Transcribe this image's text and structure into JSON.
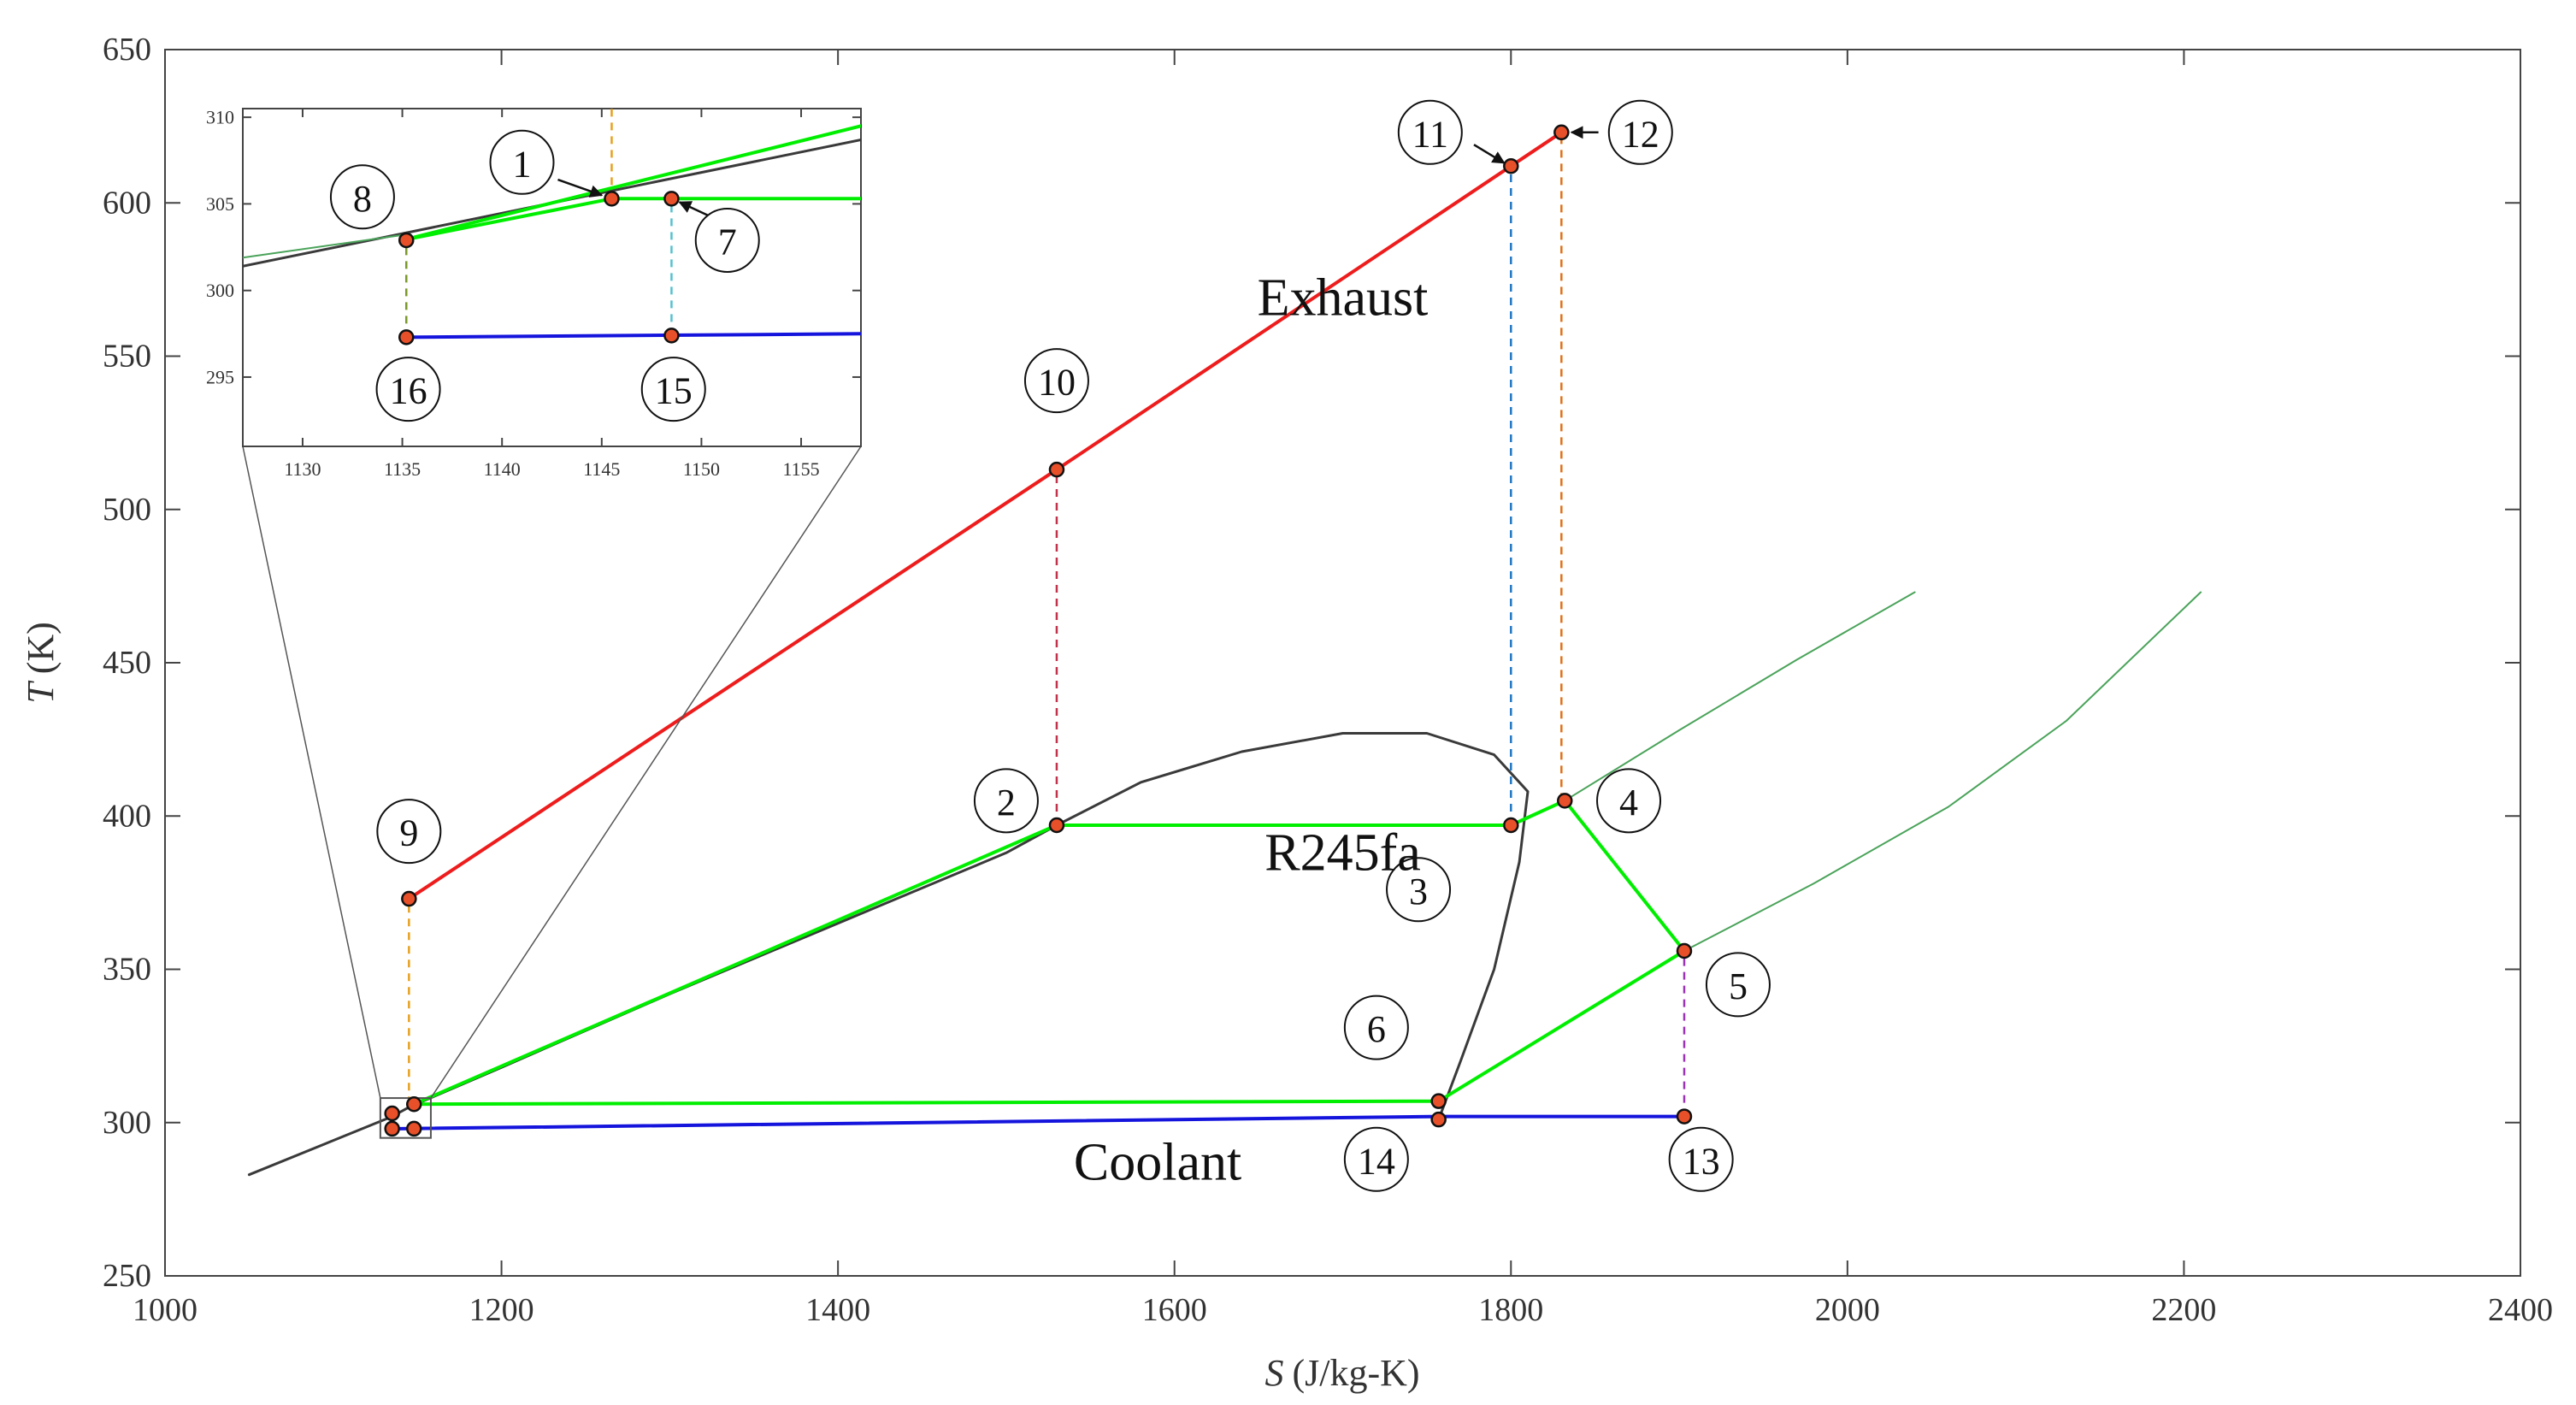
{
  "chart_data": {
    "type": "line",
    "title": "",
    "xlabel_var": "S",
    "xlabel_unit": "(J/kg-K)",
    "ylabel_var": "T",
    "ylabel_unit": "(K)",
    "xlim": [
      1000,
      2400
    ],
    "ylim": [
      250,
      650
    ],
    "x_ticks": [
      1000,
      1200,
      1400,
      1600,
      1800,
      2000,
      2200,
      2400
    ],
    "y_ticks": [
      250,
      300,
      350,
      400,
      450,
      500,
      550,
      600,
      650
    ],
    "annotations": [
      {
        "text": "Exhaust",
        "x": 1700,
        "y": 569
      },
      {
        "text": "R245fa",
        "x": 1700,
        "y": 388
      },
      {
        "text": "Coolant",
        "x": 1590,
        "y": 287
      }
    ],
    "series": [
      {
        "name": "Saturation dome",
        "color": "#3a3a3a",
        "width": 3,
        "points": [
          [
            1050,
            283
          ],
          [
            1135,
            302
          ],
          [
            1145,
            305
          ],
          [
            1200,
            318
          ],
          [
            1300,
            342
          ],
          [
            1400,
            365
          ],
          [
            1500,
            388
          ],
          [
            1530,
            397
          ],
          [
            1580,
            411
          ],
          [
            1640,
            421
          ],
          [
            1700,
            427
          ],
          [
            1750,
            427
          ],
          [
            1790,
            420
          ],
          [
            1810,
            408
          ],
          [
            1805,
            385
          ],
          [
            1790,
            350
          ],
          [
            1770,
            320
          ],
          [
            1757,
            301
          ]
        ]
      },
      {
        "name": "Superheated isobar (high)",
        "color": "#4aa35a",
        "width": 2,
        "points": [
          [
            1832,
            405
          ],
          [
            1900,
            428
          ],
          [
            1970,
            451
          ],
          [
            2040,
            473
          ]
        ]
      },
      {
        "name": "Superheated isobar (low)",
        "color": "#4aa35a",
        "width": 2,
        "points": [
          [
            1903,
            356
          ],
          [
            1980,
            378
          ],
          [
            2060,
            403
          ],
          [
            2130,
            431
          ],
          [
            2210,
            473
          ]
        ]
      },
      {
        "name": "Exhaust",
        "color": "#ee1c1c",
        "width": 4,
        "points": [
          [
            1145,
            373
          ],
          [
            1530,
            513
          ],
          [
            1800,
            612
          ],
          [
            1830,
            623
          ]
        ]
      },
      {
        "name": "R245fa cycle",
        "color": "#00ee00",
        "width": 4,
        "points": [
          [
            1148,
            306
          ],
          [
            1530,
            397
          ],
          [
            1800,
            397
          ],
          [
            1832,
            405
          ],
          [
            1903,
            356
          ],
          [
            1757,
            307
          ],
          [
            1148,
            306
          ]
        ]
      },
      {
        "name": "Coolant",
        "color": "#1414dd",
        "width": 4,
        "points": [
          [
            1140,
            298
          ],
          [
            1757,
            302
          ],
          [
            1903,
            302
          ]
        ]
      }
    ],
    "dashed_lines": [
      {
        "color": "#e6a020",
        "x": 1145,
        "y1": 306,
        "y2": 373
      },
      {
        "color": "#c0334a",
        "x": 1530,
        "y1": 397,
        "y2": 513
      },
      {
        "color": "#1f77c4",
        "x": 1800,
        "y1": 397,
        "y2": 612
      },
      {
        "color": "#e0701a",
        "x": 1830,
        "y1": 405,
        "y2": 623
      },
      {
        "color": "#9b33b5",
        "x": 1903,
        "y1": 302,
        "y2": 356
      }
    ],
    "state_points": [
      {
        "label": "2",
        "x": 1530,
        "y": 397
      },
      {
        "label": "3",
        "x": 1800,
        "y": 397
      },
      {
        "label": "4",
        "x": 1832,
        "y": 405
      },
      {
        "label": "5",
        "x": 1903,
        "y": 356
      },
      {
        "label": "6",
        "x": 1757,
        "y": 307
      },
      {
        "label": "9",
        "x": 1145,
        "y": 373
      },
      {
        "label": "10",
        "x": 1530,
        "y": 513
      },
      {
        "label": "11",
        "x": 1800,
        "y": 612
      },
      {
        "label": "12",
        "x": 1830,
        "y": 623
      },
      {
        "label": "13",
        "x": 1903,
        "y": 302
      },
      {
        "label": "14",
        "x": 1757,
        "y": 301
      },
      {
        "label": "cluster-a",
        "x": 1135,
        "y": 303
      },
      {
        "label": "cluster-b",
        "x": 1148,
        "y": 306
      },
      {
        "label": "cluster-c",
        "x": 1135,
        "y": 298
      },
      {
        "label": "cluster-d",
        "x": 1148,
        "y": 298
      }
    ],
    "label_circles": [
      {
        "label": "2",
        "x": 1500,
        "y": 405
      },
      {
        "label": "3",
        "x": 1745,
        "y": 376
      },
      {
        "label": "4",
        "x": 1870,
        "y": 405
      },
      {
        "label": "5",
        "x": 1935,
        "y": 345
      },
      {
        "label": "6",
        "x": 1720,
        "y": 331
      },
      {
        "label": "9",
        "x": 1145,
        "y": 395
      },
      {
        "label": "10",
        "x": 1530,
        "y": 542
      },
      {
        "label": "11",
        "x": 1752,
        "y": 623
      },
      {
        "label": "12",
        "x": 1877,
        "y": 623
      },
      {
        "label": "13",
        "x": 1913,
        "y": 288
      },
      {
        "label": "14",
        "x": 1720,
        "y": 288
      }
    ],
    "label_arrows": [
      {
        "from_label": "11",
        "fx": 1778,
        "fy": 619,
        "tx": 1796,
        "ty": 613
      },
      {
        "from_label": "12",
        "fx": 1852,
        "fy": 623,
        "tx": 1836,
        "ty": 623
      }
    ],
    "zoom_box": {
      "x": [
        1128,
        1158
      ],
      "y": [
        295,
        308
      ]
    },
    "inset": {
      "xlim": [
        1127,
        1158
      ],
      "ylim": [
        291,
        310.5
      ],
      "x_ticks": [
        1130,
        1135,
        1140,
        1145,
        1150,
        1155
      ],
      "y_ticks": [
        295,
        300,
        305,
        310
      ],
      "series": [
        {
          "name": "Saturation dome",
          "color": "#3a3a3a",
          "width": 3,
          "points": [
            [
              1127,
              301.4
            ],
            [
              1158,
              308.7
            ]
          ]
        },
        {
          "name": "Thin green",
          "color": "#4aa35a",
          "width": 2,
          "points": [
            [
              1127,
              301.9
            ],
            [
              1135,
              303.2
            ]
          ]
        },
        {
          "name": "R245fa low",
          "color": "#00ee00",
          "width": 4,
          "points": [
            [
              1135,
              302.9
            ],
            [
              1158,
              309.5
            ]
          ]
        },
        {
          "name": "R245fa pump",
          "color": "#00ee00",
          "width": 4,
          "points": [
            [
              1135,
              302.9
            ],
            [
              1145.5,
              305.3
            ],
            [
              1158,
              305.3
            ]
          ]
        },
        {
          "name": "Coolant",
          "color": "#1414dd",
          "width": 4,
          "points": [
            [
              1135,
              297.3
            ],
            [
              1158,
              297.5
            ]
          ]
        }
      ],
      "dashed_lines": [
        {
          "color": "#e6a020",
          "x": 1145.5,
          "y1": 305.3,
          "y2": 310.5
        },
        {
          "color": "#7a9a2a",
          "x": 1135.2,
          "y1": 297.3,
          "y2": 302.9
        },
        {
          "color": "#55c0d0",
          "x": 1148.5,
          "y1": 297.4,
          "y2": 305.3
        }
      ],
      "state_points": [
        {
          "label": "1",
          "x": 1145.5,
          "y": 305.3
        },
        {
          "label": "7",
          "x": 1148.5,
          "y": 305.3
        },
        {
          "label": "8",
          "x": 1135.2,
          "y": 302.9
        },
        {
          "label": "15",
          "x": 1148.5,
          "y": 297.4
        },
        {
          "label": "16",
          "x": 1135.2,
          "y": 297.3
        }
      ],
      "label_circles": [
        {
          "label": "1",
          "x": 1141.0,
          "y": 307.4
        },
        {
          "label": "7",
          "x": 1151.3,
          "y": 302.9
        },
        {
          "label": "8",
          "x": 1133.0,
          "y": 305.4
        },
        {
          "label": "15",
          "x": 1148.6,
          "y": 294.3
        },
        {
          "label": "16",
          "x": 1135.3,
          "y": 294.3
        }
      ],
      "label_arrows": [
        {
          "from_label": "1",
          "fx": 1142.8,
          "fy": 306.4,
          "tx": 1145.0,
          "ty": 305.5
        },
        {
          "from_label": "7",
          "fx": 1150.4,
          "fy": 304.3,
          "tx": 1148.9,
          "ty": 305.1
        }
      ]
    }
  }
}
